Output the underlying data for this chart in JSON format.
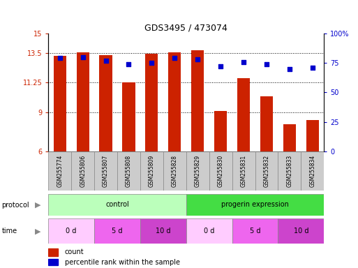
{
  "title": "GDS3495 / 473074",
  "samples": [
    "GSM255774",
    "GSM255806",
    "GSM255807",
    "GSM255808",
    "GSM255809",
    "GSM255828",
    "GSM255829",
    "GSM255830",
    "GSM255831",
    "GSM255832",
    "GSM255833",
    "GSM255834"
  ],
  "counts": [
    13.3,
    13.55,
    13.35,
    11.25,
    13.45,
    13.55,
    13.7,
    9.1,
    11.6,
    10.2,
    8.1,
    8.4
  ],
  "percentile_ranks": [
    79,
    80,
    77,
    74,
    75,
    79,
    78,
    72,
    76,
    74,
    70,
    71
  ],
  "ylim_left": [
    6,
    15
  ],
  "ylim_right": [
    0,
    100
  ],
  "yticks_left": [
    6,
    9,
    11.25,
    13.5,
    15
  ],
  "yticks_right": [
    0,
    25,
    50,
    75,
    100
  ],
  "ytick_labels_left": [
    "6",
    "9",
    "11.25",
    "13.5",
    "15"
  ],
  "ytick_labels_right": [
    "0",
    "25",
    "50",
    "75",
    "100%"
  ],
  "bar_color": "#cc2200",
  "dot_color": "#0000cc",
  "protocol_control_color": "#bbffbb",
  "protocol_progerin_color": "#44dd44",
  "time_0d_color": "#ffccff",
  "time_5d_color": "#ee66ee",
  "time_10d_color": "#cc44cc",
  "protocol_labels": [
    "control",
    "progerin expression"
  ],
  "legend_count_label": "count",
  "legend_pct_label": "percentile rank within the sample",
  "grid_color": "#888888",
  "sample_box_color": "#cccccc",
  "time_groups": [
    {
      "start": 0,
      "end": 2,
      "color": "#ffccff",
      "label": "0 d"
    },
    {
      "start": 2,
      "end": 4,
      "color": "#ee66ee",
      "label": "5 d"
    },
    {
      "start": 4,
      "end": 6,
      "color": "#cc44cc",
      "label": "10 d"
    },
    {
      "start": 6,
      "end": 8,
      "color": "#ffccff",
      "label": "0 d"
    },
    {
      "start": 8,
      "end": 10,
      "color": "#ee66ee",
      "label": "5 d"
    },
    {
      "start": 10,
      "end": 12,
      "color": "#cc44cc",
      "label": "10 d"
    }
  ]
}
